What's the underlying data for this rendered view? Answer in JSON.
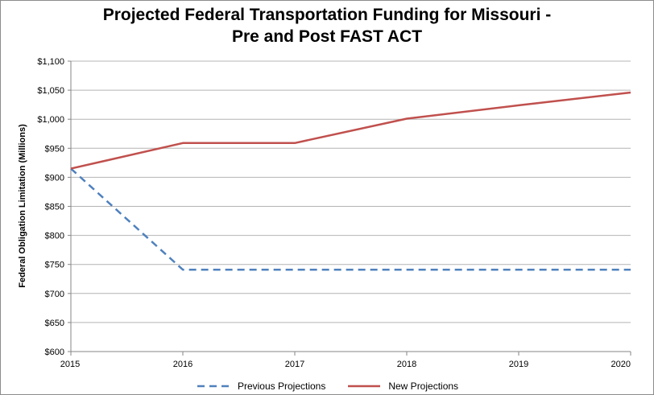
{
  "chart_data": {
    "type": "line",
    "title_line1": "Projected Federal Transportation Funding for Missouri -",
    "title_line2": "Pre and Post FAST ACT",
    "xlabel": "",
    "ylabel": "Federal Obligation Limitation (Millions)",
    "x": [
      2015,
      2016,
      2017,
      2018,
      2019,
      2020
    ],
    "x_tick_labels": [
      "2015",
      "2016",
      "2017",
      "2018",
      "2019",
      "2020"
    ],
    "ylim": [
      600,
      1100
    ],
    "y_ticks": [
      600,
      650,
      700,
      750,
      800,
      850,
      900,
      950,
      1000,
      1050,
      1100
    ],
    "y_tick_labels": [
      "$600",
      "$650",
      "$700",
      "$750",
      "$800",
      "$850",
      "$900",
      "$950",
      "$1,000",
      "$1,050",
      "$1,100"
    ],
    "grid": "horizontal",
    "legend_position": "bottom",
    "series": [
      {
        "name": "Previous Projections",
        "values": [
          915,
          741,
          741,
          741,
          741,
          741
        ],
        "color": "#4f81bd",
        "style": "dashed"
      },
      {
        "name": "New Projections",
        "values": [
          915,
          959,
          959,
          1001,
          1024,
          1046
        ],
        "color": "#c0504d",
        "style": "solid"
      }
    ]
  }
}
